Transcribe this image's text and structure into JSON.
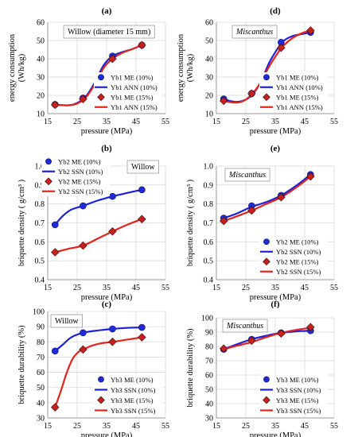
{
  "chart_data": [
    {
      "type": "scatter",
      "panel_label": "(a)",
      "inset_title": "Willow (diameter 15 mm)",
      "inset_title_style": "normal",
      "xlabel": "pressure (MPa)",
      "ylabel_lines": [
        "energy consumption",
        "(Wh/kg)"
      ],
      "xlim": [
        15,
        55
      ],
      "ylim": [
        10,
        60
      ],
      "xticks": [
        15,
        25,
        35,
        45,
        55
      ],
      "yticks": [
        10,
        20,
        30,
        40,
        50,
        60
      ],
      "grid": true,
      "legend_position": "lower-right",
      "series": [
        {
          "name": "Yb1 ME (10%)",
          "kind": "marker",
          "marker": "circle",
          "color": "#1f2bd8",
          "x": [
            17.5,
            27,
            37,
            47
          ],
          "y": [
            15,
            18.5,
            41.5,
            47.5
          ]
        },
        {
          "name": "Yb1 ANN (10%)",
          "kind": "line",
          "color": "#1a22e0",
          "x": [
            17.5,
            22,
            25,
            28,
            31,
            34,
            37,
            40,
            44,
            47
          ],
          "y": [
            15,
            14.5,
            15.8,
            19.5,
            27,
            36.5,
            41.5,
            43.5,
            45.5,
            47.5
          ]
        },
        {
          "name": "Yb1 ME (15%)",
          "kind": "marker",
          "marker": "diamond",
          "color": "#c8201c",
          "x": [
            17.5,
            27,
            37,
            47
          ],
          "y": [
            14.8,
            18,
            40,
            47.5
          ]
        },
        {
          "name": "Yb1 ANN (15%)",
          "kind": "line",
          "color": "#e5231b",
          "x": [
            17.5,
            22,
            25,
            28,
            31,
            34,
            37,
            40,
            44,
            47
          ],
          "y": [
            14.8,
            14.6,
            15.5,
            19,
            26,
            35,
            40,
            43,
            45.5,
            47.5
          ]
        }
      ]
    },
    {
      "type": "scatter",
      "panel_label": "(d)",
      "inset_title": "Miscanthus",
      "inset_title_style": "italic",
      "xlabel": "pressure (MPa)",
      "ylabel_lines": [
        "energy consumption",
        "(Wh/kg)"
      ],
      "xlim": [
        15,
        55
      ],
      "ylim": [
        10,
        60
      ],
      "xticks": [
        15,
        25,
        35,
        45,
        55
      ],
      "yticks": [
        10,
        20,
        30,
        40,
        50,
        60
      ],
      "grid": true,
      "legend_position": "lower-right",
      "series": [
        {
          "name": "Yb1 ME (10%)",
          "kind": "marker",
          "marker": "circle",
          "color": "#1f2bd8",
          "x": [
            17.5,
            27,
            37,
            47
          ],
          "y": [
            18,
            21,
            49,
            54.5
          ]
        },
        {
          "name": "Yb1 ANN (10%)",
          "kind": "line",
          "color": "#1a22e0",
          "x": [
            17.5,
            21,
            24,
            27,
            30,
            33,
            36,
            38,
            41,
            44,
            47
          ],
          "y": [
            17.8,
            16.5,
            17,
            20,
            27,
            38,
            46,
            50,
            52.5,
            53.5,
            54.5
          ]
        },
        {
          "name": "Yb1 ME (15%)",
          "kind": "marker",
          "marker": "diamond",
          "color": "#c8201c",
          "x": [
            17.5,
            27,
            37,
            47
          ],
          "y": [
            17,
            21,
            46,
            55.5
          ]
        },
        {
          "name": "Yb1 ANN (15%)",
          "kind": "line",
          "color": "#e5231b",
          "x": [
            17.5,
            21,
            24,
            27,
            30,
            33,
            36,
            38,
            41,
            44,
            47
          ],
          "y": [
            17,
            16,
            16.8,
            20.5,
            27,
            36,
            43.5,
            47.5,
            51.5,
            54,
            55.5
          ]
        }
      ]
    },
    {
      "type": "scatter",
      "panel_label": "(b)",
      "inset_title": "Willow",
      "inset_title_style": "normal",
      "xlabel": "pressure (MPa)",
      "ylabel_lines": [
        "briquette density  ( g/cm³ )"
      ],
      "xlim": [
        15,
        55
      ],
      "ylim": [
        0.4,
        1.0
      ],
      "xticks": [
        15,
        25,
        35,
        45,
        55
      ],
      "yticks": [
        0.4,
        0.5,
        0.6,
        0.7,
        0.8,
        0.9,
        1.0
      ],
      "ytick_decimals": 1,
      "grid": true,
      "legend_position": "top-left",
      "series": [
        {
          "name": "Yb2 ME (10%)",
          "kind": "marker",
          "marker": "circle",
          "color": "#1f2bd8",
          "x": [
            17.5,
            27,
            37,
            47
          ],
          "y": [
            0.69,
            0.79,
            0.84,
            0.875
          ]
        },
        {
          "name": "Yb2 SSN (10%)",
          "kind": "line",
          "color": "#1a22e0",
          "x": [
            17.5,
            20,
            23,
            27,
            32,
            37,
            42,
            47
          ],
          "y": [
            0.69,
            0.735,
            0.77,
            0.79,
            0.818,
            0.84,
            0.858,
            0.875
          ]
        },
        {
          "name": "Yb2 ME (15%)",
          "kind": "marker",
          "marker": "diamond",
          "color": "#c8201c",
          "x": [
            17.5,
            27,
            37,
            47
          ],
          "y": [
            0.545,
            0.58,
            0.655,
            0.72
          ]
        },
        {
          "name": "Yb2 SSN (15%)",
          "kind": "line",
          "color": "#e5231b",
          "x": [
            17.5,
            22,
            27,
            32,
            37,
            42,
            47
          ],
          "y": [
            0.545,
            0.563,
            0.58,
            0.617,
            0.655,
            0.69,
            0.72
          ]
        }
      ]
    },
    {
      "type": "scatter",
      "panel_label": "(e)",
      "inset_title": "Miscanthus",
      "inset_title_style": "italic",
      "xlabel": "pressure (MPa)",
      "ylabel_lines": [
        "briquette density  ( g/cm³ )"
      ],
      "xlim": [
        15,
        55
      ],
      "ylim": [
        0.4,
        1.0
      ],
      "xticks": [
        15,
        25,
        35,
        45,
        55
      ],
      "yticks": [
        0.4,
        0.5,
        0.6,
        0.7,
        0.8,
        0.9,
        1.0
      ],
      "ytick_decimals": 1,
      "grid": true,
      "legend_position": "lower-right",
      "series": [
        {
          "name": "Yb2 ME (10%)",
          "kind": "marker",
          "marker": "circle",
          "color": "#1f2bd8",
          "x": [
            17.5,
            27,
            37,
            47
          ],
          "y": [
            0.725,
            0.79,
            0.845,
            0.955
          ]
        },
        {
          "name": "Yb2 SSN (10%)",
          "kind": "line",
          "color": "#1a22e0",
          "x": [
            17.5,
            22,
            27,
            32,
            37,
            42,
            47
          ],
          "y": [
            0.725,
            0.75,
            0.785,
            0.81,
            0.845,
            0.895,
            0.955
          ]
        },
        {
          "name": "Yb2 ME (15%)",
          "kind": "marker",
          "marker": "diamond",
          "color": "#c8201c",
          "x": [
            17.5,
            27,
            37,
            47
          ],
          "y": [
            0.71,
            0.765,
            0.835,
            0.945
          ]
        },
        {
          "name": "Yb2 SSN (15%)",
          "kind": "line",
          "color": "#e5231b",
          "x": [
            17.5,
            22,
            27,
            32,
            37,
            42,
            47
          ],
          "y": [
            0.71,
            0.735,
            0.765,
            0.8,
            0.835,
            0.885,
            0.945
          ]
        }
      ]
    },
    {
      "type": "scatter",
      "panel_label": "(c)",
      "inset_title": "Willow",
      "inset_title_style": "normal",
      "xlabel": "pressure (MPa)",
      "ylabel_lines": [
        "briquette durability (%)"
      ],
      "xlim": [
        15,
        55
      ],
      "ylim": [
        30,
        100
      ],
      "xticks": [
        15,
        25,
        35,
        45,
        55
      ],
      "yticks": [
        30,
        40,
        50,
        60,
        70,
        80,
        90,
        100
      ],
      "grid": true,
      "legend_position": "lower-right",
      "series": [
        {
          "name": "Yb3 ME (10%)",
          "kind": "marker",
          "marker": "circle",
          "color": "#1f2bd8",
          "x": [
            17.5,
            27,
            37,
            47
          ],
          "y": [
            74,
            86,
            88.5,
            89.5
          ]
        },
        {
          "name": "Yb3 SSN (10%)",
          "kind": "line",
          "color": "#1a22e0",
          "x": [
            17.5,
            20,
            23,
            27,
            32,
            37,
            42,
            47
          ],
          "y": [
            74,
            78,
            83,
            86,
            87.5,
            88.5,
            89.2,
            89.5
          ]
        },
        {
          "name": "Yb3 ME (15%)",
          "kind": "marker",
          "marker": "diamond",
          "color": "#c8201c",
          "x": [
            17.5,
            27,
            37,
            47
          ],
          "y": [
            37,
            75,
            80,
            83
          ]
        },
        {
          "name": "Yb3 SSN (15%)",
          "kind": "line",
          "color": "#e5231b",
          "x": [
            17.5,
            19.5,
            21.5,
            23.5,
            25.5,
            27,
            30,
            33,
            37,
            42,
            47
          ],
          "y": [
            37,
            48,
            60,
            69,
            73.5,
            75,
            77.5,
            79,
            80,
            81.5,
            83
          ]
        }
      ]
    },
    {
      "type": "scatter",
      "panel_label": "(f)",
      "inset_title": "Miscanthus",
      "inset_title_style": "italic",
      "xlabel": "pressure (MPa)",
      "ylabel_lines": [
        "briquette durability (%)"
      ],
      "xlim": [
        15,
        55
      ],
      "ylim": [
        30,
        100
      ],
      "xticks": [
        15,
        25,
        35,
        45,
        55
      ],
      "yticks": [
        30,
        40,
        50,
        60,
        70,
        80,
        90,
        100
      ],
      "grid": true,
      "legend_position": "lower-right",
      "series": [
        {
          "name": "Yb3 ME (10%)",
          "kind": "marker",
          "marker": "circle",
          "color": "#1f2bd8",
          "x": [
            17.5,
            27,
            37,
            47
          ],
          "y": [
            78,
            85,
            89.5,
            91
          ]
        },
        {
          "name": "Yb3 SSN (10%)",
          "kind": "line",
          "color": "#1a22e0",
          "x": [
            17.5,
            22,
            27,
            32,
            37,
            42,
            47
          ],
          "y": [
            78,
            81.5,
            85,
            87.5,
            89.5,
            90.5,
            91
          ]
        },
        {
          "name": "Yb3 ME (15%)",
          "kind": "marker",
          "marker": "diamond",
          "color": "#c8201c",
          "x": [
            17.5,
            27,
            37,
            47
          ],
          "y": [
            78.5,
            84,
            89,
            93.5
          ]
        },
        {
          "name": "Yb3 SSN (15%)",
          "kind": "line",
          "color": "#e5231b",
          "x": [
            17.5,
            22,
            27,
            32,
            37,
            42,
            47
          ],
          "y": [
            78,
            80.5,
            83,
            86.5,
            89.5,
            91.5,
            93
          ]
        }
      ]
    }
  ]
}
